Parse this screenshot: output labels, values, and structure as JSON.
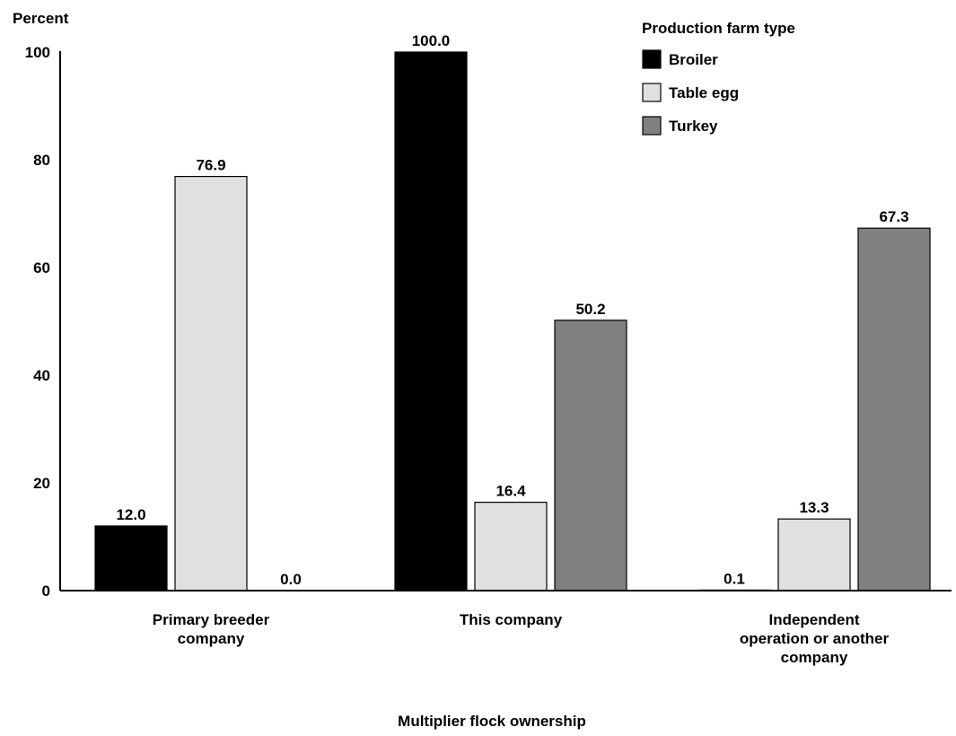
{
  "chart_data": {
    "type": "bar",
    "title": "",
    "ylabel": "Percent",
    "xlabel": "Multiplier flock ownership",
    "ylim": [
      0,
      100
    ],
    "yticks": [
      0,
      20,
      40,
      60,
      80,
      100
    ],
    "categories": [
      [
        "Primary breeder",
        "company"
      ],
      [
        "This company"
      ],
      [
        "Independent",
        "operation or another",
        "company"
      ]
    ],
    "legend": {
      "title": "Production farm type",
      "placement": "top-right"
    },
    "series": [
      {
        "name": "Broiler",
        "color": "#000000",
        "values": [
          12.0,
          100.0,
          0.1
        ],
        "labels": [
          "12.0",
          "100.0",
          "0.1"
        ]
      },
      {
        "name": "Table egg",
        "color": "#e0e0e0",
        "values": [
          76.9,
          16.4,
          13.3
        ],
        "labels": [
          "76.9",
          "16.4",
          "13.3"
        ]
      },
      {
        "name": "Turkey",
        "color": "#808080",
        "values": [
          0.0,
          50.2,
          67.3
        ],
        "labels": [
          "0.0",
          "50.2",
          "67.3"
        ]
      }
    ],
    "grid": false
  }
}
